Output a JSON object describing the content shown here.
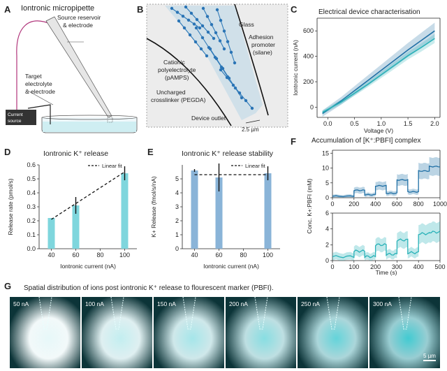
{
  "panelA": {
    "letter": "A",
    "title": "Iontronic micropipette",
    "label_source": [
      "Source reservoir",
      "& electrode"
    ],
    "label_target": [
      "Target",
      "electrolyte",
      "& electrode"
    ],
    "label_current": [
      "Current",
      "source"
    ]
  },
  "panelB": {
    "letter": "B",
    "label_glass": "Glass",
    "label_adhesion": [
      "Adhesion",
      "promoter",
      "(silane)"
    ],
    "label_cationic": [
      "Cationic",
      "polyelectrolyte",
      "(pAMPS)"
    ],
    "label_uncharged": [
      "Uncharged",
      "crosslinker (PEGDA)"
    ],
    "label_outlet": "Device outlet",
    "scale": "2.5 µm"
  },
  "panelC": {
    "letter": "C",
    "title": "Electrical device characterisation",
    "xlabel": "Voltage (V)",
    "ylabel": "Iontronic current (nA)",
    "xticks": [
      "0.0",
      "0.5",
      "1.0",
      "1.5",
      "2.0"
    ],
    "yticks": [
      "0",
      "200",
      "400",
      "600"
    ]
  },
  "panelD": {
    "letter": "D",
    "title": "Iontronic K⁺ release",
    "xlabel": "Iontronic current (nA)",
    "ylabel": "Release rate (pmol/s)",
    "legend": "Linear fit",
    "xticks": [
      "40",
      "60",
      "80",
      "100"
    ],
    "yticks": [
      "0.0",
      "0.1",
      "0.2",
      "0.3",
      "0.4",
      "0.5",
      "0.6"
    ]
  },
  "panelE": {
    "letter": "E",
    "title": "Iontronic K⁺ release stability",
    "xlabel": "Iontronic current (nA)",
    "ylabel": "K+ Release (fmol/s/nA)",
    "legend": "Linear fit",
    "xticks": [
      "40",
      "60",
      "80",
      "100"
    ],
    "yticks": [
      "0",
      "1",
      "2",
      "3",
      "4",
      "5"
    ]
  },
  "panelF": {
    "letter": "F",
    "title": "Accumulation of [K⁺:PBFI] complex",
    "xlabel": "Time (s)",
    "ylabel": "Conc. K+:PBFI (mM)",
    "top_xticks": [
      "0",
      "200",
      "400",
      "600",
      "800",
      "1000"
    ],
    "top_yticks": [
      "0",
      "5",
      "10",
      "15"
    ],
    "bottom_xticks": [
      "0",
      "100",
      "200",
      "300",
      "400",
      "500"
    ],
    "bottom_yticks": [
      "0",
      "2",
      "4",
      "6"
    ]
  },
  "panelG": {
    "letter": "G",
    "title": "Spatial distribution of ions post iontronic K⁺ release to flourescent marker (PBFI).",
    "tiles": [
      {
        "label": "50 nA",
        "glow": 0.12
      },
      {
        "label": "100 nA",
        "glow": 0.3
      },
      {
        "label": "150 nA",
        "glow": 0.45
      },
      {
        "label": "200 nA",
        "glow": 0.6
      },
      {
        "label": "250 nA",
        "glow": 0.78
      },
      {
        "label": "300 nA",
        "glow": 0.95
      }
    ],
    "scalebar": "5 µm"
  },
  "colors": {
    "teal_light": "#7fd6dd",
    "blue_bar": "#8ab4d8",
    "line_dark": "#1f6fa5",
    "line_teal": "#2ab2b8",
    "fluor_bg": "#0c3438",
    "fluor_glow": "#38c8cf"
  },
  "chart_data": [
    {
      "id": "C",
      "type": "line",
      "title": "Electrical device characterisation",
      "xlabel": "Voltage (V)",
      "ylabel": "Iontronic current (nA)",
      "xlim": [
        -0.2,
        2.1
      ],
      "ylim": [
        -80,
        700
      ],
      "series": [
        {
          "x": [
            -0.1,
            0.25,
            0.5,
            0.75,
            1.0,
            1.25,
            1.5,
            1.75,
            2.0
          ],
          "y": [
            -50,
            50,
            130,
            210,
            290,
            370,
            450,
            525,
            600
          ],
          "band": [
            25,
            30,
            35,
            40,
            45,
            50,
            55,
            60,
            65
          ]
        },
        {
          "x": [
            -0.1,
            0.25,
            0.5,
            0.75,
            1.0,
            1.25,
            1.5,
            1.75,
            2.0
          ],
          "y": [
            -40,
            40,
            110,
            180,
            255,
            330,
            405,
            470,
            540
          ],
          "band": [
            15,
            18,
            20,
            22,
            25,
            28,
            30,
            32,
            35
          ]
        }
      ]
    },
    {
      "id": "D",
      "type": "bar",
      "title": "Iontronic K⁺ release",
      "xlabel": "Iontronic current (nA)",
      "ylabel": "Release rate (pmol/s)",
      "x": [
        40,
        60,
        100
      ],
      "values": [
        0.22,
        0.31,
        0.54
      ],
      "errors": [
        0.0,
        0.06,
        0.05
      ],
      "fit": {
        "x": [
          40,
          100
        ],
        "y": [
          0.21,
          0.55
        ]
      },
      "legend": "Linear fit",
      "xlim": [
        30,
        110
      ],
      "ylim": [
        0,
        0.6
      ]
    },
    {
      "id": "E",
      "type": "bar",
      "title": "Iontronic K⁺ release stability",
      "xlabel": "Iontronic current (nA)",
      "ylabel": "K+ Release (fmol/s/nA)",
      "x": [
        40,
        60,
        100
      ],
      "values": [
        5.6,
        5.1,
        5.4
      ],
      "errors": [
        0.1,
        1.0,
        0.5
      ],
      "fit": {
        "x": [
          40,
          100
        ],
        "y": [
          5.3,
          5.3
        ]
      },
      "legend": "Linear fit",
      "xlim": [
        30,
        110
      ],
      "ylim": [
        0,
        6
      ]
    },
    {
      "id": "F-top",
      "type": "line",
      "title": "Accumulation of [K⁺:PBFI] complex",
      "xlabel": "",
      "ylabel": "",
      "xlim": [
        0,
        1000
      ],
      "ylim": [
        0,
        16
      ],
      "steps": [
        {
          "start": 0,
          "end": 200,
          "level": 0.5
        },
        {
          "start": 200,
          "end": 300,
          "level": 2.5
        },
        {
          "start": 300,
          "end": 400,
          "level": 1.0
        },
        {
          "start": 400,
          "end": 500,
          "level": 4.0
        },
        {
          "start": 500,
          "end": 600,
          "level": 1.5
        },
        {
          "start": 600,
          "end": 700,
          "level": 6.0
        },
        {
          "start": 700,
          "end": 800,
          "level": 2.0
        },
        {
          "start": 800,
          "end": 900,
          "level": 9.0
        },
        {
          "start": 900,
          "end": 1000,
          "level": 10.5
        }
      ],
      "band": 0.4
    },
    {
      "id": "F-bottom",
      "type": "line",
      "xlabel": "Time (s)",
      "ylabel": "Conc. K+:PBFI (mM)",
      "xlim": [
        0,
        500
      ],
      "ylim": [
        0,
        6
      ],
      "steps": [
        {
          "start": 0,
          "end": 100,
          "level": 0.5
        },
        {
          "start": 100,
          "end": 150,
          "level": 1.2
        },
        {
          "start": 150,
          "end": 200,
          "level": 0.5
        },
        {
          "start": 200,
          "end": 250,
          "level": 2.0
        },
        {
          "start": 250,
          "end": 300,
          "level": 0.8
        },
        {
          "start": 300,
          "end": 350,
          "level": 2.6
        },
        {
          "start": 350,
          "end": 400,
          "level": 1.0
        },
        {
          "start": 400,
          "end": 450,
          "level": 3.4
        },
        {
          "start": 450,
          "end": 500,
          "level": 3.6
        }
      ],
      "band": 0.35
    }
  ]
}
